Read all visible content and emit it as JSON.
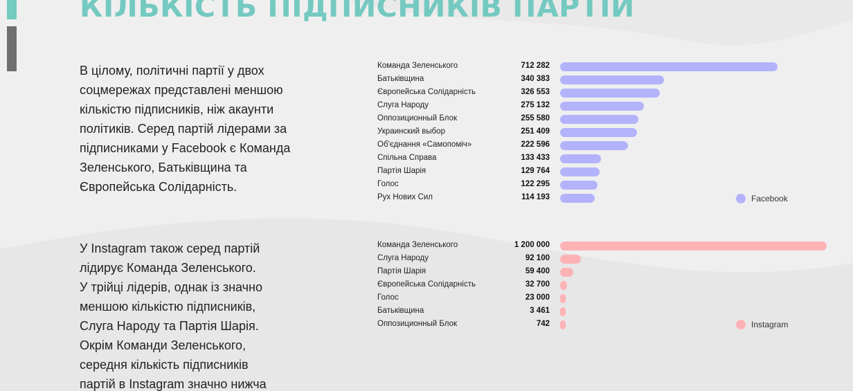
{
  "title": "КІЛЬКІСТЬ ПІДПИСНИКІВ ПАРТІЙ",
  "paragraphs": {
    "facebook": [
      "В цілому, політичні партії у двох",
      "соцмережах представлені меншою",
      "кількістю підписників, ніж акаунти",
      "політиків. Серед партій лідерами за",
      "підписниками у Facebook є Команда",
      "Зеленського, Батьківщина та",
      "Європейська Солідарність."
    ],
    "instagram": [
      "У Instagram також серед партій",
      "лідирує Команда Зеленського.",
      "У трійці лідерів, однак із значно",
      "меншою кількістю підписників,",
      "Слуга Народу та Партія Шарія.",
      "Окрім Команди Зеленського,",
      "середня кількість підписників",
      "партій в Instagram значно нижча"
    ]
  },
  "colors": {
    "title": "#74c9c0",
    "facebook_bar": "#b3b3fb",
    "instagram_bar": "#fdb3b6",
    "accent_gray": "#6f6f6f"
  },
  "chart_data": [
    {
      "type": "bar",
      "orientation": "horizontal",
      "legend": "Facebook",
      "legend_position": "bottom-right",
      "color": "#b3b3fb",
      "categories": [
        "Команда Зеленського",
        "Батьківщина",
        "Європейська Солідарність",
        "Слуга Народу",
        "Оппозиционный Блок",
        "Украинский выбор",
        "Об'єднання «Самопоміч»",
        "Спільна Справа",
        "Партія Шарія",
        "Голос",
        "Рух Нових Сил"
      ],
      "values": [
        712282,
        340383,
        326553,
        275132,
        255580,
        251409,
        222596,
        133433,
        129764,
        122295,
        114193
      ],
      "value_labels": [
        "712 282",
        "340 383",
        "326 553",
        "275 132",
        "255 580",
        "251 409",
        "222 596",
        "133 433",
        "129 764",
        "122 295",
        "114 193"
      ]
    },
    {
      "type": "bar",
      "orientation": "horizontal",
      "legend": "Instagram",
      "legend_position": "bottom-right",
      "color": "#fdb3b6",
      "categories": [
        "Команда Зеленського",
        "Слуга Народу",
        "Партія Шарія",
        "Європейська Солідарність",
        "Голос",
        "Батьківщина",
        "Оппозиционный Блок"
      ],
      "values": [
        1200000,
        92100,
        59400,
        32700,
        23000,
        3461,
        742
      ],
      "value_labels": [
        "1 200 000",
        "92 100",
        "59 400",
        "32 700",
        "23 000",
        "3 461",
        "742"
      ]
    }
  ]
}
